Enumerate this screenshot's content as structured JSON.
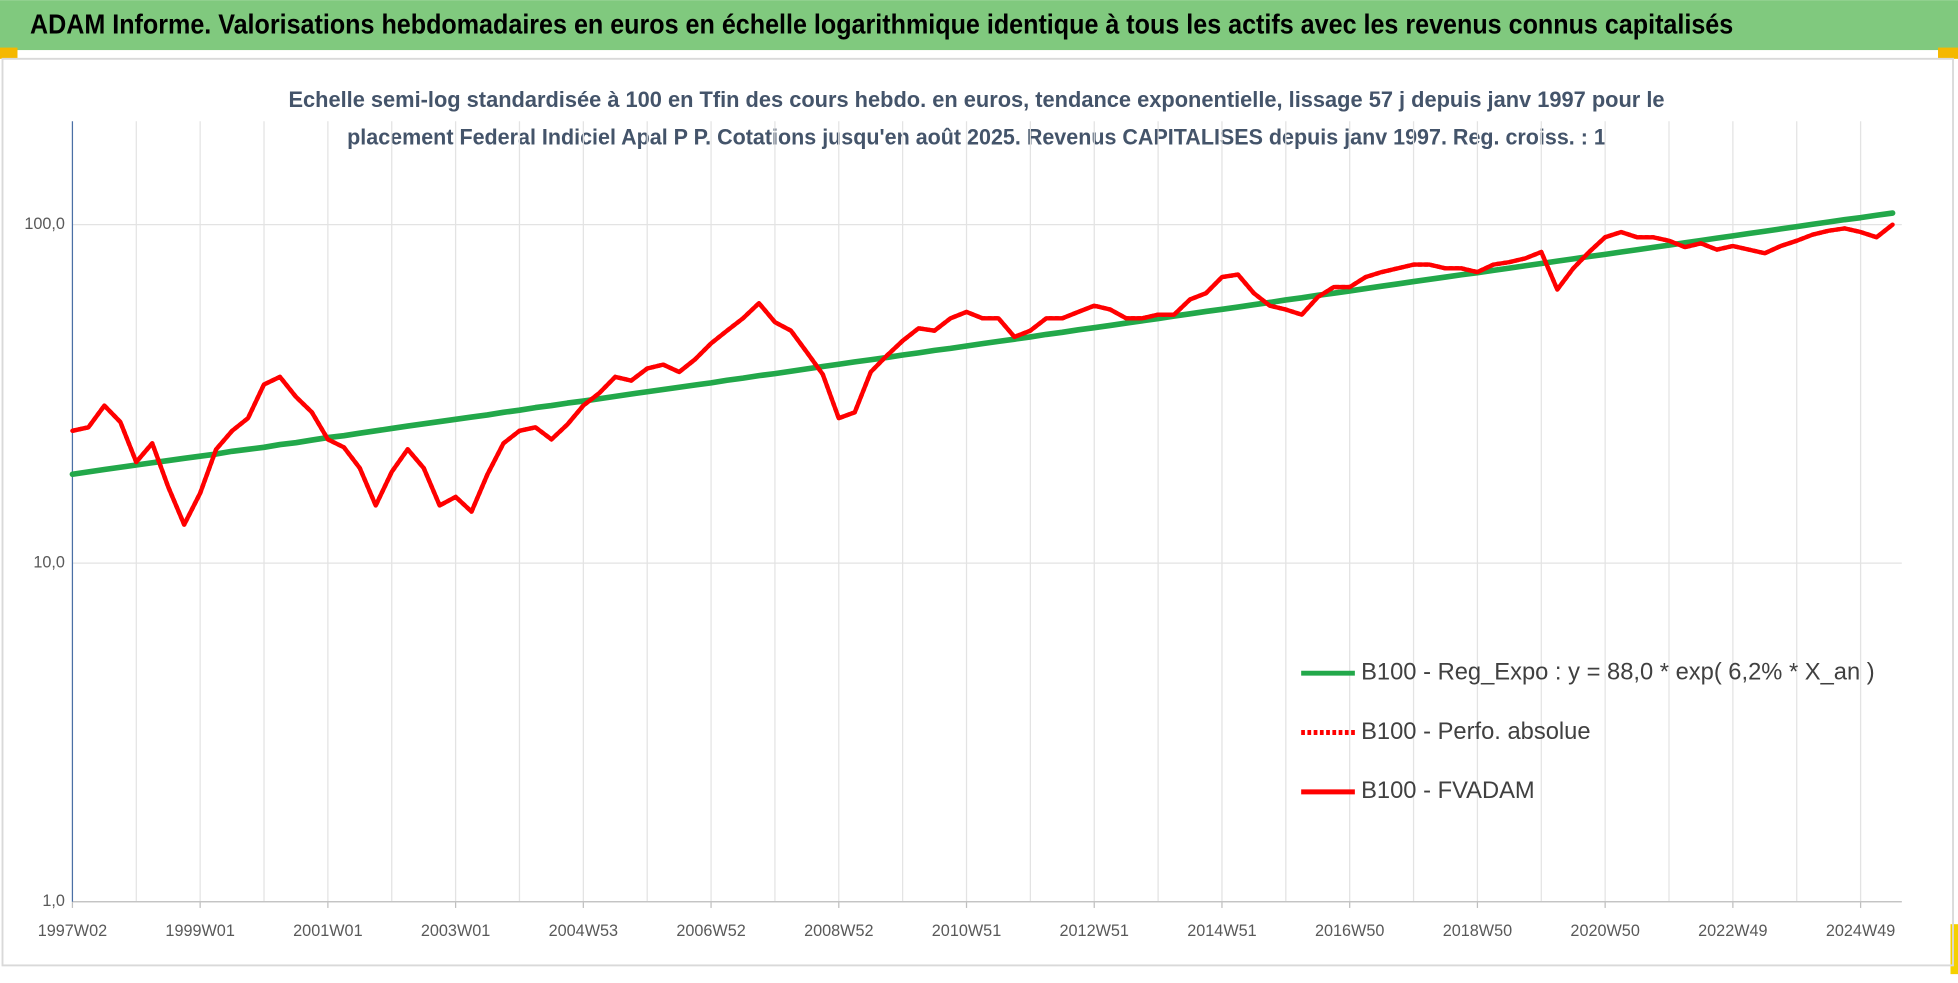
{
  "header": {
    "title": "ADAM Informe. Valorisations hebdomadaires en euros en échelle logarithmique identique à tous les actifs avec les revenus connus capitalisés"
  },
  "chart_data": {
    "type": "line",
    "title_lines": [
      "Echelle semi-log standardisée à 100 en Tfin des cours hebdo. en euros, tendance exponentielle, lissage 57 j depuis janv 1997 pour le",
      "placement Federal Indiciel Apal P P. Cotations jusqu'en août 2025. Revenus CAPITALISES depuis janv 1997. Reg. croiss. : 1"
    ],
    "categories": [
      "1997W02",
      null,
      null,
      null,
      null,
      null,
      null,
      null,
      "1999W01",
      null,
      null,
      null,
      null,
      null,
      null,
      null,
      "2001W01",
      null,
      null,
      null,
      null,
      null,
      null,
      null,
      "2003W01",
      null,
      null,
      null,
      null,
      null,
      null,
      null,
      "2004W53",
      null,
      null,
      null,
      null,
      null,
      null,
      null,
      "2006W52",
      null,
      null,
      null,
      null,
      null,
      null,
      null,
      "2008W52",
      null,
      null,
      null,
      null,
      null,
      null,
      null,
      "2010W51",
      null,
      null,
      null,
      null,
      null,
      null,
      null,
      "2012W51",
      null,
      null,
      null,
      null,
      null,
      null,
      null,
      "2014W51",
      null,
      null,
      null,
      null,
      null,
      null,
      null,
      "2016W50",
      null,
      null,
      null,
      null,
      null,
      null,
      null,
      "2018W50",
      null,
      null,
      null,
      null,
      null,
      null,
      null,
      "2020W50",
      null,
      null,
      null,
      null,
      null,
      null,
      null,
      "2022W49",
      null,
      null,
      null,
      null,
      null,
      null,
      null,
      "2024W49",
      null,
      null
    ],
    "log_scale": true,
    "ylim": [
      1,
      202
    ],
    "yticks": [
      {
        "value": 1,
        "label": "1,0"
      },
      {
        "value": 10,
        "label": "10,0"
      },
      {
        "value": 100,
        "label": "100,0"
      }
    ],
    "grid": true,
    "legend": "lower right",
    "series": [
      {
        "name": "B100 - Reg_Expo : y = 88,0 * exp( 6,2% *  X_an )",
        "color": "#22a84a",
        "style": "solid",
        "values": [
          18.3,
          18.6,
          18.9,
          19.2,
          19.5,
          19.8,
          20.1,
          20.4,
          20.7,
          21.0,
          21.4,
          21.7,
          22.0,
          22.4,
          22.7,
          23.1,
          23.5,
          23.8,
          24.2,
          24.6,
          25.0,
          25.4,
          25.8,
          26.2,
          26.6,
          27.0,
          27.4,
          27.9,
          28.3,
          28.8,
          29.2,
          29.7,
          30.1,
          30.6,
          31.1,
          31.6,
          32.1,
          32.6,
          33.1,
          33.6,
          34.1,
          34.7,
          35.2,
          35.8,
          36.3,
          36.9,
          37.5,
          38.1,
          38.7,
          39.3,
          39.9,
          40.5,
          41.2,
          41.8,
          42.5,
          43.1,
          43.8,
          44.5,
          45.2,
          45.9,
          46.6,
          47.4,
          48.1,
          48.9,
          49.6,
          50.4,
          51.2,
          52.0,
          52.8,
          53.7,
          54.5,
          55.4,
          56.2,
          57.1,
          58.0,
          58.9,
          59.9,
          60.8,
          61.8,
          62.7,
          63.7,
          64.7,
          65.8,
          66.8,
          67.9,
          68.9,
          70.0,
          71.1,
          72.1,
          73.3,
          74.4,
          75.6,
          76.8,
          78.0,
          79.2,
          80.5,
          81.7,
          83.0,
          84.3,
          85.7,
          87.0,
          88.4,
          89.8,
          91.2,
          92.6,
          94.1,
          95.6,
          97.1,
          98.6,
          100.2,
          101.8,
          103.4,
          104.9,
          106.6,
          108.2
        ]
      },
      {
        "name": "B100 - Perfo. absolue",
        "color": "#ff0000",
        "style": "dotted",
        "values": [
          24.6,
          25.2,
          29.2,
          26.1,
          19.9,
          22.6,
          16.8,
          13.0,
          16.1,
          21.7,
          24.6,
          26.8,
          33.7,
          35.5,
          31.0,
          27.9,
          23.2,
          22.0,
          19.1,
          14.8,
          18.6,
          21.7,
          19.1,
          14.8,
          15.7,
          14.2,
          18.3,
          22.6,
          24.6,
          25.2,
          23.2,
          25.7,
          29.2,
          31.8,
          35.5,
          34.6,
          37.6,
          38.6,
          36.7,
          40.0,
          44.6,
          48.6,
          52.9,
          58.6,
          51.5,
          48.6,
          42.0,
          36.1,
          26.8,
          27.9,
          36.7,
          41.0,
          45.4,
          49.4,
          48.6,
          52.9,
          55.2,
          52.9,
          52.9,
          46.6,
          48.6,
          52.9,
          52.9,
          55.2,
          57.6,
          56.1,
          52.9,
          52.9,
          54.2,
          54.2,
          60.1,
          62.7,
          70.0,
          71.2,
          62.7,
          57.6,
          56.1,
          54.2,
          61.1,
          65.4,
          65.4,
          70.0,
          72.4,
          74.3,
          76.2,
          76.2,
          74.3,
          74.3,
          72.4,
          76.2,
          77.5,
          79.5,
          83.0,
          64.3,
          74.3,
          83.0,
          91.8,
          95.1,
          91.8,
          91.8,
          89.6,
          85.8,
          88.0,
          84.4,
          86.5,
          84.4,
          82.3,
          86.5,
          89.6,
          93.4,
          95.9,
          97.5,
          95.1,
          91.8,
          100.0
        ]
      },
      {
        "name": "B100 - FVADAM",
        "color": "#ff0000",
        "style": "solid",
        "values": [
          24.6,
          25.2,
          29.2,
          26.1,
          19.9,
          22.6,
          16.8,
          13.0,
          16.1,
          21.7,
          24.6,
          26.8,
          33.7,
          35.5,
          31.0,
          27.9,
          23.2,
          22.0,
          19.1,
          14.8,
          18.6,
          21.7,
          19.1,
          14.8,
          15.7,
          14.2,
          18.3,
          22.6,
          24.6,
          25.2,
          23.2,
          25.7,
          29.2,
          31.8,
          35.5,
          34.6,
          37.6,
          38.6,
          36.7,
          40.0,
          44.6,
          48.6,
          52.9,
          58.6,
          51.5,
          48.6,
          42.0,
          36.1,
          26.8,
          27.9,
          36.7,
          41.0,
          45.4,
          49.4,
          48.6,
          52.9,
          55.2,
          52.9,
          52.9,
          46.6,
          48.6,
          52.9,
          52.9,
          55.2,
          57.6,
          56.1,
          52.9,
          52.9,
          54.2,
          54.2,
          60.1,
          62.7,
          70.0,
          71.2,
          62.7,
          57.6,
          56.1,
          54.2,
          61.1,
          65.4,
          65.4,
          70.0,
          72.4,
          74.3,
          76.2,
          76.2,
          74.3,
          74.3,
          72.4,
          76.2,
          77.5,
          79.5,
          83.0,
          64.3,
          74.3,
          83.0,
          91.8,
          95.1,
          91.8,
          91.8,
          89.6,
          85.8,
          88.0,
          84.4,
          86.5,
          84.4,
          82.3,
          86.5,
          89.6,
          93.4,
          95.9,
          97.5,
          95.1,
          91.8,
          100.0
        ]
      }
    ]
  }
}
